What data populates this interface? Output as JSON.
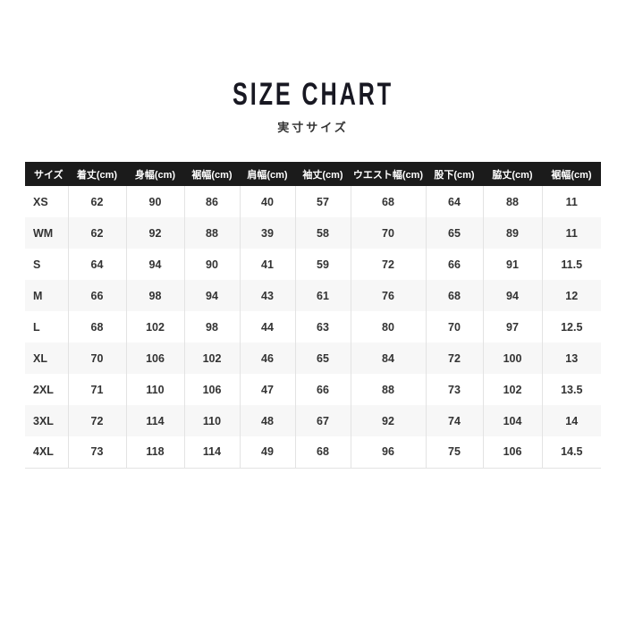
{
  "page": {
    "title": "SIZE CHART",
    "subtitle": "実寸サイズ"
  },
  "chart_data": {
    "type": "table",
    "title": "SIZE CHART",
    "subtitle": "実寸サイズ",
    "unit": "cm",
    "columns": [
      "サイズ",
      "着丈(cm)",
      "身幅(cm)",
      "裾幅(cm)",
      "肩幅(cm)",
      "袖丈(cm)",
      "ウエスト幅(cm)",
      "股下(cm)",
      "脇丈(cm)",
      "裾幅(cm)"
    ],
    "rows": [
      [
        "XS",
        62,
        90,
        86,
        40,
        57,
        68,
        64,
        88,
        11
      ],
      [
        "WM",
        62,
        92,
        88,
        39,
        58,
        70,
        65,
        89,
        11
      ],
      [
        "S",
        64,
        94,
        90,
        41,
        59,
        72,
        66,
        91,
        11.5
      ],
      [
        "M",
        66,
        98,
        94,
        43,
        61,
        76,
        68,
        94,
        12
      ],
      [
        "L",
        68,
        102,
        98,
        44,
        63,
        80,
        70,
        97,
        12.5
      ],
      [
        "XL",
        70,
        106,
        102,
        46,
        65,
        84,
        72,
        100,
        13
      ],
      [
        "2XL",
        71,
        110,
        106,
        47,
        66,
        88,
        73,
        102,
        13.5
      ],
      [
        "3XL",
        72,
        114,
        110,
        48,
        67,
        92,
        74,
        104,
        14
      ],
      [
        "4XL",
        73,
        118,
        114,
        49,
        68,
        96,
        75,
        106,
        14.5
      ]
    ],
    "layout_hints": {
      "striped_rows": true,
      "header_style": "black-background-white-text"
    }
  },
  "colors": {
    "header_bg": "#1b1b1b",
    "header_text": "#ffffff",
    "row_alt_bg": "#f7f7f7",
    "body_text": "#333333",
    "border": "#e3e3e3",
    "title_text": "#181822"
  }
}
